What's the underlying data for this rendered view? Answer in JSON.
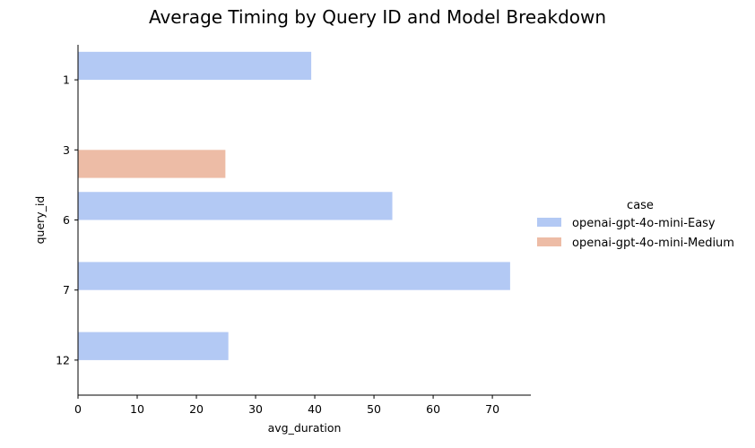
{
  "chart_data": {
    "type": "bar",
    "orientation": "horizontal",
    "title": "Average Timing by Query ID and Model Breakdown",
    "xlabel": "avg_duration",
    "ylabel": "query_id",
    "xlim": [
      0,
      76.5
    ],
    "xticks": [
      "0",
      "10",
      "20",
      "30",
      "40",
      "50",
      "60",
      "70"
    ],
    "categories": [
      "1",
      "3",
      "6",
      "7",
      "12"
    ],
    "grid": false,
    "legend": {
      "title": "case",
      "placement": "right"
    },
    "series": [
      {
        "name": "openai-gpt-4o-mini-Easy",
        "color": "#b3c9f4",
        "values": [
          39.4,
          null,
          53.1,
          73.0,
          25.4
        ]
      },
      {
        "name": "openai-gpt-4o-mini-Medium",
        "color": "#edbca6",
        "values": [
          null,
          24.9,
          null,
          null,
          null
        ]
      }
    ]
  }
}
